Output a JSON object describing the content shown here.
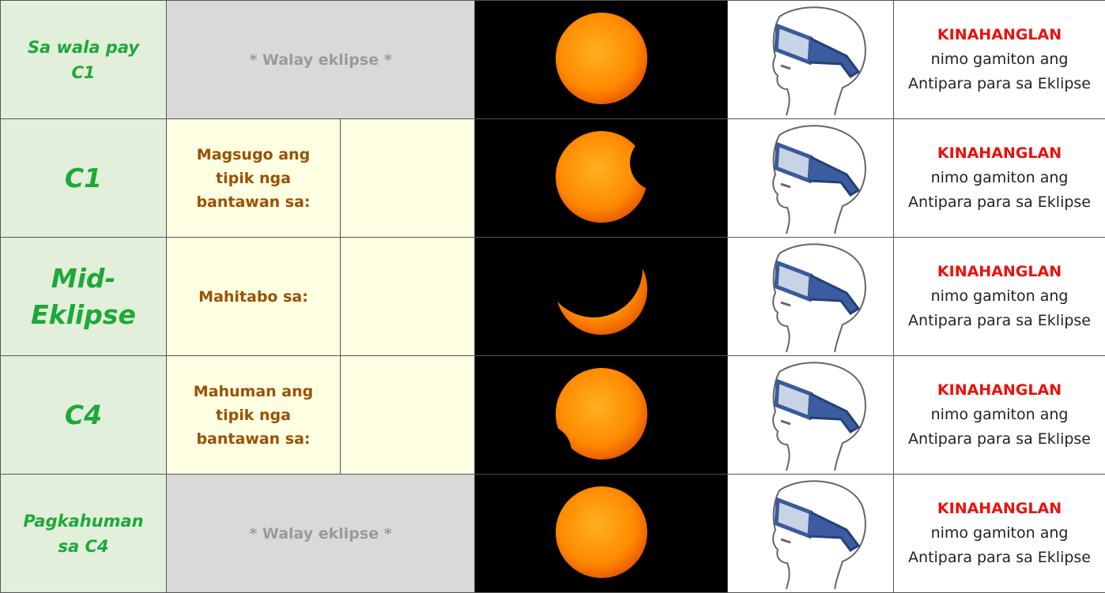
{
  "rows": [
    {
      "phase": "Sa wala pay C1",
      "note": "* Walay eklipse *",
      "requirement": "KINAHANGLAN",
      "instruction": "nimo gamiton ang Antipara para sa Eklipse"
    },
    {
      "phase": "C1",
      "note": "Magsugo ang tipik nga bantawan sa:",
      "requirement": "KINAHANGLAN",
      "instruction": "nimo gamiton ang Antipara para sa Eklipse"
    },
    {
      "phase": "Mid-Eklipse",
      "note": "Mahitabo sa:",
      "requirement": "KINAHANGLAN",
      "instruction": "nimo gamiton ang Antipara para sa Eklipse"
    },
    {
      "phase": "C4",
      "note": "Mahuman ang tipik nga bantawan sa:",
      "requirement": "KINAHANGLAN",
      "instruction": "nimo gamiton ang Antipara para sa Eklipse"
    },
    {
      "phase": "Pagkahuman sa C4",
      "note": "* Walay eklipse *",
      "requirement": "KINAHANGLAN",
      "instruction": "nimo gamiton ang Antipara para sa Eklipse"
    }
  ]
}
